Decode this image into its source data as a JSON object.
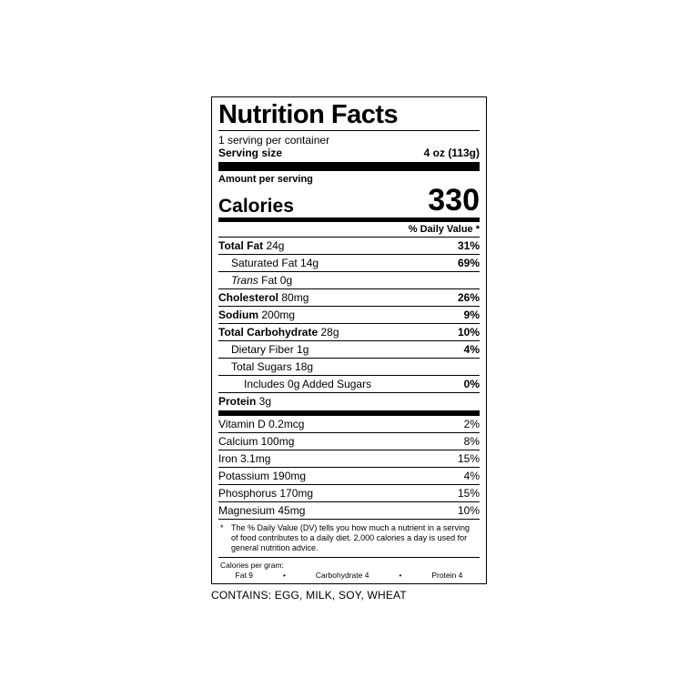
{
  "title": "Nutrition Facts",
  "servings_per_container": "1 serving per container",
  "serving_size_label": "Serving size",
  "serving_size_value": "4 oz (113g)",
  "amount_per_serving": "Amount per serving",
  "calories_label": "Calories",
  "calories_value": "330",
  "dv_header": "% Daily Value *",
  "nutrients_main": [
    {
      "label": "Total Fat",
      "amount": "24g",
      "dv": "31%",
      "bold": true,
      "indent": 0
    },
    {
      "label": "Saturated Fat",
      "amount": "14g",
      "dv": "69%",
      "bold": false,
      "indent": 1
    },
    {
      "label_html": "Trans",
      "label_suffix": " Fat",
      "amount": "0g",
      "dv": "",
      "bold": false,
      "indent": 1,
      "italic_prefix": true
    },
    {
      "label": "Cholesterol",
      "amount": "80mg",
      "dv": "26%",
      "bold": true,
      "indent": 0
    },
    {
      "label": "Sodium",
      "amount": "200mg",
      "dv": "9%",
      "bold": true,
      "indent": 0
    },
    {
      "label": "Total Carbohydrate",
      "amount": "28g",
      "dv": "10%",
      "bold": true,
      "indent": 0
    },
    {
      "label": "Dietary Fiber",
      "amount": "1g",
      "dv": "4%",
      "bold": false,
      "indent": 1
    },
    {
      "label": "Total Sugars",
      "amount": "18g",
      "dv": "",
      "bold": false,
      "indent": 1
    },
    {
      "label": "Includes 0g Added Sugars",
      "amount": "",
      "dv": "0%",
      "bold": false,
      "indent": 2
    },
    {
      "label": "Protein",
      "amount": "3g",
      "dv": "",
      "bold": true,
      "indent": 0
    }
  ],
  "nutrients_vit": [
    {
      "label": "Vitamin D",
      "amount": "0.2mcg",
      "dv": "2%"
    },
    {
      "label": "Calcium",
      "amount": "100mg",
      "dv": "8%"
    },
    {
      "label": "Iron",
      "amount": "3.1mg",
      "dv": "15%"
    },
    {
      "label": "Potassium",
      "amount": "190mg",
      "dv": "4%"
    },
    {
      "label": "Phosphorus",
      "amount": "170mg",
      "dv": "15%"
    },
    {
      "label": "Magnesium",
      "amount": "45mg",
      "dv": "10%"
    }
  ],
  "footnote_star": "*",
  "footnote_text": "The % Daily Value (DV) tells you how much a nutrient in a serving of food contributes to a daily diet. 2,000 calories a day is used for general nutrition advice.",
  "cpg_title": "Calories per gram:",
  "cpg_items": [
    "Fat 9",
    "Carbohydrate 4",
    "Protein 4"
  ],
  "contains_text": "CONTAINS: EGG, MILK, SOY, WHEAT",
  "colors": {
    "fg": "#000000",
    "bg": "#ffffff"
  }
}
